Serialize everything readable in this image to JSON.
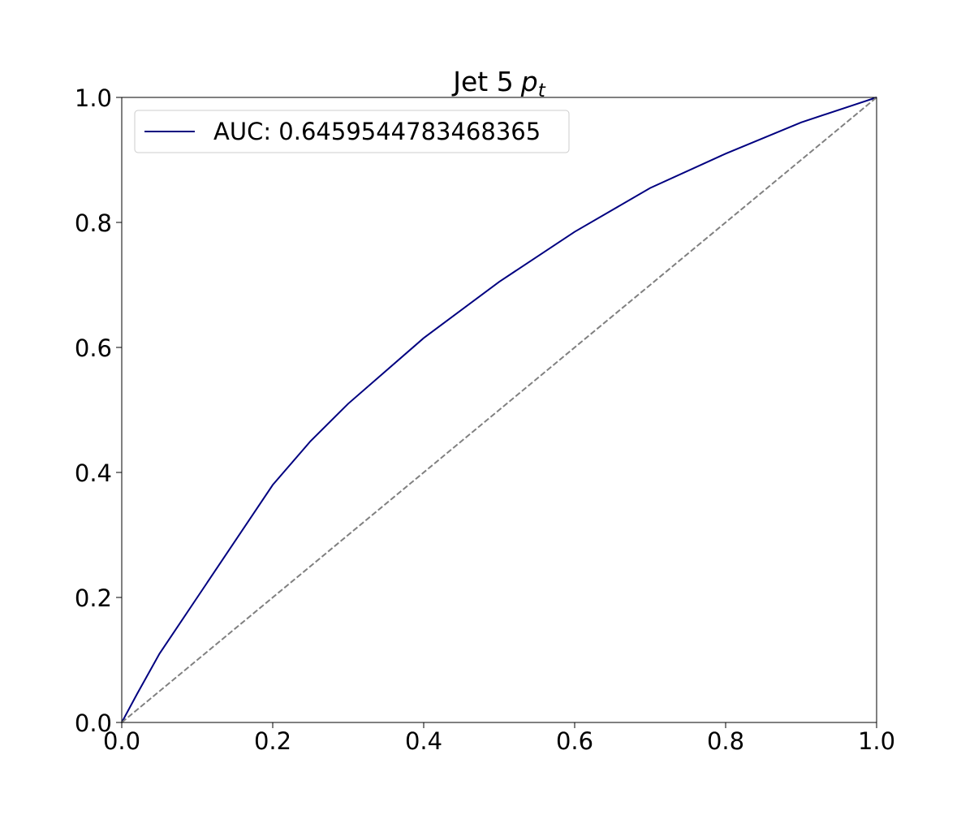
{
  "chart_data": {
    "type": "line",
    "title": "Jet 5",
    "title_symbol": "p",
    "title_subscript": "t",
    "xlim": [
      0,
      1
    ],
    "ylim": [
      0,
      1
    ],
    "xticks": [
      {
        "value": 0,
        "label": "0.0"
      },
      0.2,
      0.4,
      0.6,
      0.8,
      {
        "value": 1,
        "label": "1.0"
      }
    ],
    "yticks": [
      {
        "value": 0,
        "label": "0.0"
      },
      0.2,
      0.4,
      0.6,
      0.8,
      {
        "value": 1,
        "label": "1.0"
      }
    ],
    "grid": false,
    "legend": "upper-left",
    "series": [
      {
        "name": "AUC: 0.6459544783468365",
        "color": "#000080",
        "dash": false,
        "x": [
          0,
          0.02,
          0.05,
          0.1,
          0.15,
          0.2,
          0.25,
          0.3,
          0.4,
          0.5,
          0.6,
          0.7,
          0.8,
          0.9,
          1
        ],
        "values": [
          0,
          0.045,
          0.11,
          0.2,
          0.29,
          0.38,
          0.45,
          0.51,
          0.615,
          0.705,
          0.785,
          0.855,
          0.91,
          0.96,
          1
        ]
      },
      {
        "color": "#808080",
        "dash": true,
        "x": [
          0,
          1
        ],
        "values": [
          0,
          1
        ]
      }
    ]
  }
}
